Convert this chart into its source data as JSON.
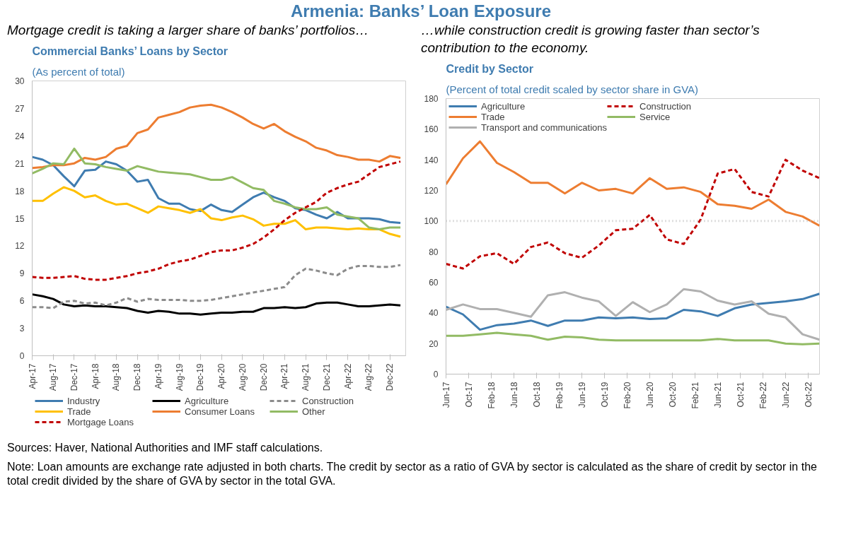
{
  "chart_data": [
    {
      "type": "line",
      "title": "Commercial Banks’ Loans by Sector",
      "subtitle": "(As percent of total)",
      "annotations": [
        "Armenia: Banks’ Loan Exposure",
        "Mortgage credit is taking a larger share of banks’ portfolios…",
        "Sources: Haver, National Authorities and IMF staff calculations.",
        "Note: Loan amounts are exchange rate adjusted in both charts. The credit by sector as a ratio of GVA by sector is calculated as the share of credit by sector in the total credit divided by the share of GVA by sector in the total GVA."
      ],
      "x": [
        "2017-04",
        "2017-06",
        "2017-08",
        "2017-10",
        "2017-12",
        "2018-02",
        "2018-04",
        "2018-06",
        "2018-08",
        "2018-10",
        "2018-12",
        "2019-02",
        "2019-04",
        "2019-06",
        "2019-08",
        "2019-10",
        "2019-12",
        "2020-02",
        "2020-04",
        "2020-06",
        "2020-08",
        "2020-10",
        "2020-12",
        "2021-02",
        "2021-04",
        "2021-06",
        "2021-08",
        "2021-10",
        "2021-12",
        "2022-02",
        "2022-04",
        "2022-06",
        "2022-08",
        "2022-10",
        "2022-12",
        "2023-02"
      ],
      "series": [
        {
          "name": "Industry",
          "color": "#3f7cb0",
          "values": [
            21.7,
            21.4,
            20.8,
            19.6,
            18.5,
            20.2,
            20.3,
            21.2,
            20.9,
            20.2,
            19.0,
            19.2,
            17.2,
            16.6,
            16.6,
            16.0,
            15.8,
            16.5,
            15.9,
            15.7,
            16.5,
            17.3,
            17.8,
            17.3,
            16.9,
            16.1,
            15.9,
            15.4,
            15.0,
            15.7,
            15.0,
            15.0,
            15.0,
            14.9,
            14.6,
            14.5
          ]
        },
        {
          "name": "Agriculture",
          "color": "#000000",
          "values": [
            6.7,
            6.5,
            6.2,
            5.6,
            5.4,
            5.5,
            5.4,
            5.4,
            5.3,
            5.2,
            4.9,
            4.7,
            4.9,
            4.8,
            4.6,
            4.6,
            4.5,
            4.6,
            4.7,
            4.7,
            4.8,
            4.8,
            5.2,
            5.2,
            5.3,
            5.2,
            5.3,
            5.7,
            5.8,
            5.8,
            5.6,
            5.4,
            5.4,
            5.5,
            5.6,
            5.5
          ]
        },
        {
          "name": "Construction",
          "color": "#8c8c8c",
          "line_style": "dashed",
          "values": [
            5.3,
            5.3,
            5.2,
            5.9,
            6.0,
            5.7,
            5.8,
            5.5,
            5.8,
            6.3,
            5.9,
            6.2,
            6.1,
            6.1,
            6.1,
            6.0,
            6.0,
            6.1,
            6.3,
            6.5,
            6.7,
            6.9,
            7.1,
            7.3,
            7.5,
            8.8,
            9.5,
            9.3,
            9.0,
            8.8,
            9.5,
            9.8,
            9.8,
            9.7,
            9.7,
            9.9
          ]
        },
        {
          "name": "Trade",
          "color": "#ffc000",
          "values": [
            16.9,
            16.9,
            17.7,
            18.4,
            18.0,
            17.3,
            17.5,
            16.9,
            16.5,
            16.6,
            16.1,
            15.6,
            16.3,
            16.1,
            15.9,
            15.6,
            16.0,
            15.0,
            14.8,
            15.1,
            15.3,
            14.9,
            14.2,
            14.4,
            14.4,
            14.8,
            13.8,
            14.0,
            14.0,
            13.9,
            13.8,
            13.9,
            13.8,
            13.8,
            13.3,
            13.0
          ]
        },
        {
          "name": "Consumer Loans",
          "color": "#ed7d31",
          "values": [
            20.5,
            20.6,
            20.8,
            20.8,
            21.0,
            21.6,
            21.4,
            21.7,
            22.6,
            22.9,
            24.3,
            24.7,
            26.0,
            26.3,
            26.6,
            27.1,
            27.3,
            27.4,
            27.1,
            26.6,
            26.0,
            25.3,
            24.8,
            25.3,
            24.5,
            23.9,
            23.4,
            22.7,
            22.4,
            21.9,
            21.7,
            21.4,
            21.4,
            21.2,
            21.8,
            21.6
          ]
        },
        {
          "name": "Other",
          "color": "#92bb64",
          "values": [
            19.9,
            20.4,
            21.0,
            20.9,
            22.6,
            21.0,
            20.9,
            20.6,
            20.4,
            20.2,
            20.7,
            20.4,
            20.1,
            20.0,
            19.9,
            19.8,
            19.5,
            19.2,
            19.2,
            19.5,
            18.9,
            18.3,
            18.1,
            16.9,
            16.6,
            16.2,
            16.0,
            16.0,
            16.2,
            15.4,
            15.2,
            15.0,
            14.0,
            13.8,
            14.0,
            14.0
          ]
        },
        {
          "name": "Mortgage Loans",
          "color": "#c00000",
          "line_style": "dashed",
          "values": [
            8.6,
            8.5,
            8.5,
            8.6,
            8.7,
            8.4,
            8.3,
            8.3,
            8.5,
            8.7,
            9.0,
            9.2,
            9.5,
            10.0,
            10.3,
            10.5,
            10.9,
            11.3,
            11.5,
            11.5,
            11.8,
            12.2,
            12.9,
            13.8,
            14.8,
            15.6,
            16.2,
            16.8,
            17.8,
            18.3,
            18.7,
            19.0,
            19.8,
            20.6,
            20.9,
            21.2
          ]
        }
      ],
      "xlim": [
        "2017-04",
        "2023-03"
      ],
      "xticks": [
        {
          "value": "2017-04",
          "label": "Apr-17"
        },
        {
          "value": "2017-08",
          "label": "Aug-17"
        },
        {
          "value": "2017-12",
          "label": "Dec-17"
        },
        {
          "value": "2018-04",
          "label": "Apr-18"
        },
        {
          "value": "2018-08",
          "label": "Aug-18"
        },
        {
          "value": "2018-12",
          "label": "Dec-18"
        },
        {
          "value": "2019-04",
          "label": "Apr-19"
        },
        {
          "value": "2019-08",
          "label": "Aug-19"
        },
        {
          "value": "2019-12",
          "label": "Dec-19"
        },
        {
          "value": "2020-04",
          "label": "Apr-20"
        },
        {
          "value": "2020-08",
          "label": "Aug-20"
        },
        {
          "value": "2020-12",
          "label": "Dec-20"
        },
        {
          "value": "2021-04",
          "label": "Apr-21"
        },
        {
          "value": "2021-08",
          "label": "Aug-21"
        },
        {
          "value": "2021-12",
          "label": "Dec-21"
        },
        {
          "value": "2022-04",
          "label": "Apr-22"
        },
        {
          "value": "2022-08",
          "label": "Aug-22"
        },
        {
          "value": "2022-12",
          "label": "Dec-22"
        }
      ],
      "ylim": [
        0,
        30
      ],
      "yticks": [
        0,
        3,
        6,
        9,
        12,
        15,
        18,
        21,
        24,
        27,
        30
      ],
      "legend": "bottom"
    },
    {
      "type": "line",
      "title": "Credit by Sector",
      "subtitle": "(Percent of total credit scaled by sector share in GVA)",
      "annotations": [
        "…while construction credit is growing faster than sector’s contribution to the economy."
      ],
      "x": [
        "2017-06",
        "2017-09",
        "2017-12",
        "2018-03",
        "2018-06",
        "2018-09",
        "2018-12",
        "2019-03",
        "2019-06",
        "2019-09",
        "2019-12",
        "2020-03",
        "2020-06",
        "2020-09",
        "2020-12",
        "2021-03",
        "2021-06",
        "2021-09",
        "2021-12",
        "2022-03",
        "2022-06",
        "2022-09",
        "2022-12"
      ],
      "series": [
        {
          "name": "Agriculture",
          "color": "#3f7cb0",
          "values": [
            44,
            39,
            29,
            32,
            33,
            35,
            31.5,
            35,
            35,
            37,
            36.5,
            37,
            36,
            36.5,
            42,
            41,
            38,
            43,
            45.5,
            46.5,
            47.5,
            49,
            52.5
          ]
        },
        {
          "name": "Construction",
          "color": "#c00000",
          "line_style": "dashed",
          "values": [
            72,
            69,
            77,
            79,
            72,
            83,
            86,
            79,
            76,
            84,
            94,
            95,
            104,
            88,
            85,
            101,
            131,
            134,
            119,
            116,
            140,
            133,
            128
          ]
        },
        {
          "name": "Trade",
          "color": "#ed7d31",
          "values": [
            124,
            141,
            152,
            138,
            132,
            125,
            125,
            118,
            125,
            120,
            121,
            118,
            128,
            121,
            122,
            119,
            111,
            110,
            108,
            114,
            106,
            103,
            97
          ]
        },
        {
          "name": "Service",
          "color": "#92bb64",
          "values": [
            25,
            25,
            26,
            27,
            26,
            25,
            22.5,
            24.5,
            24,
            22.5,
            22,
            22,
            22,
            22,
            22,
            22,
            23,
            22,
            22,
            22,
            20,
            19.5,
            20
          ]
        },
        {
          "name": "Transport and communications",
          "color": "#b0b0b0",
          "values": [
            42,
            45.5,
            42.5,
            42.5,
            40,
            37.5,
            51.5,
            53.5,
            50,
            47.5,
            38,
            47,
            40.5,
            45.5,
            55.5,
            54,
            48,
            45.5,
            47.5,
            39.5,
            37,
            26,
            22.5
          ]
        }
      ],
      "ref_lines": [
        {
          "axis": "y",
          "value": 100,
          "color": "#bfbfbf",
          "line_style": "dotted"
        }
      ],
      "xlim": [
        "2017-06",
        "2022-12"
      ],
      "xticks": [
        {
          "value": "2017-06",
          "label": "Jun-17"
        },
        {
          "value": "2017-10",
          "label": "Oct-17"
        },
        {
          "value": "2018-02",
          "label": "Feb-18"
        },
        {
          "value": "2018-06",
          "label": "Jun-18"
        },
        {
          "value": "2018-10",
          "label": "Oct-18"
        },
        {
          "value": "2019-02",
          "label": "Feb-19"
        },
        {
          "value": "2019-06",
          "label": "Jun-19"
        },
        {
          "value": "2019-10",
          "label": "Oct-19"
        },
        {
          "value": "2020-02",
          "label": "Feb-20"
        },
        {
          "value": "2020-06",
          "label": "Jun-20"
        },
        {
          "value": "2020-10",
          "label": "Oct-20"
        },
        {
          "value": "2021-02",
          "label": "Feb-21"
        },
        {
          "value": "2021-06",
          "label": "Jun-21"
        },
        {
          "value": "2021-10",
          "label": "Oct-21"
        },
        {
          "value": "2022-02",
          "label": "Feb-22"
        },
        {
          "value": "2022-06",
          "label": "Jun-22"
        },
        {
          "value": "2022-10",
          "label": "Oct-22"
        }
      ],
      "ylim": [
        0,
        180
      ],
      "yticks": [
        0,
        20,
        40,
        60,
        80,
        100,
        120,
        140,
        160,
        180
      ],
      "legend": "top left"
    }
  ]
}
